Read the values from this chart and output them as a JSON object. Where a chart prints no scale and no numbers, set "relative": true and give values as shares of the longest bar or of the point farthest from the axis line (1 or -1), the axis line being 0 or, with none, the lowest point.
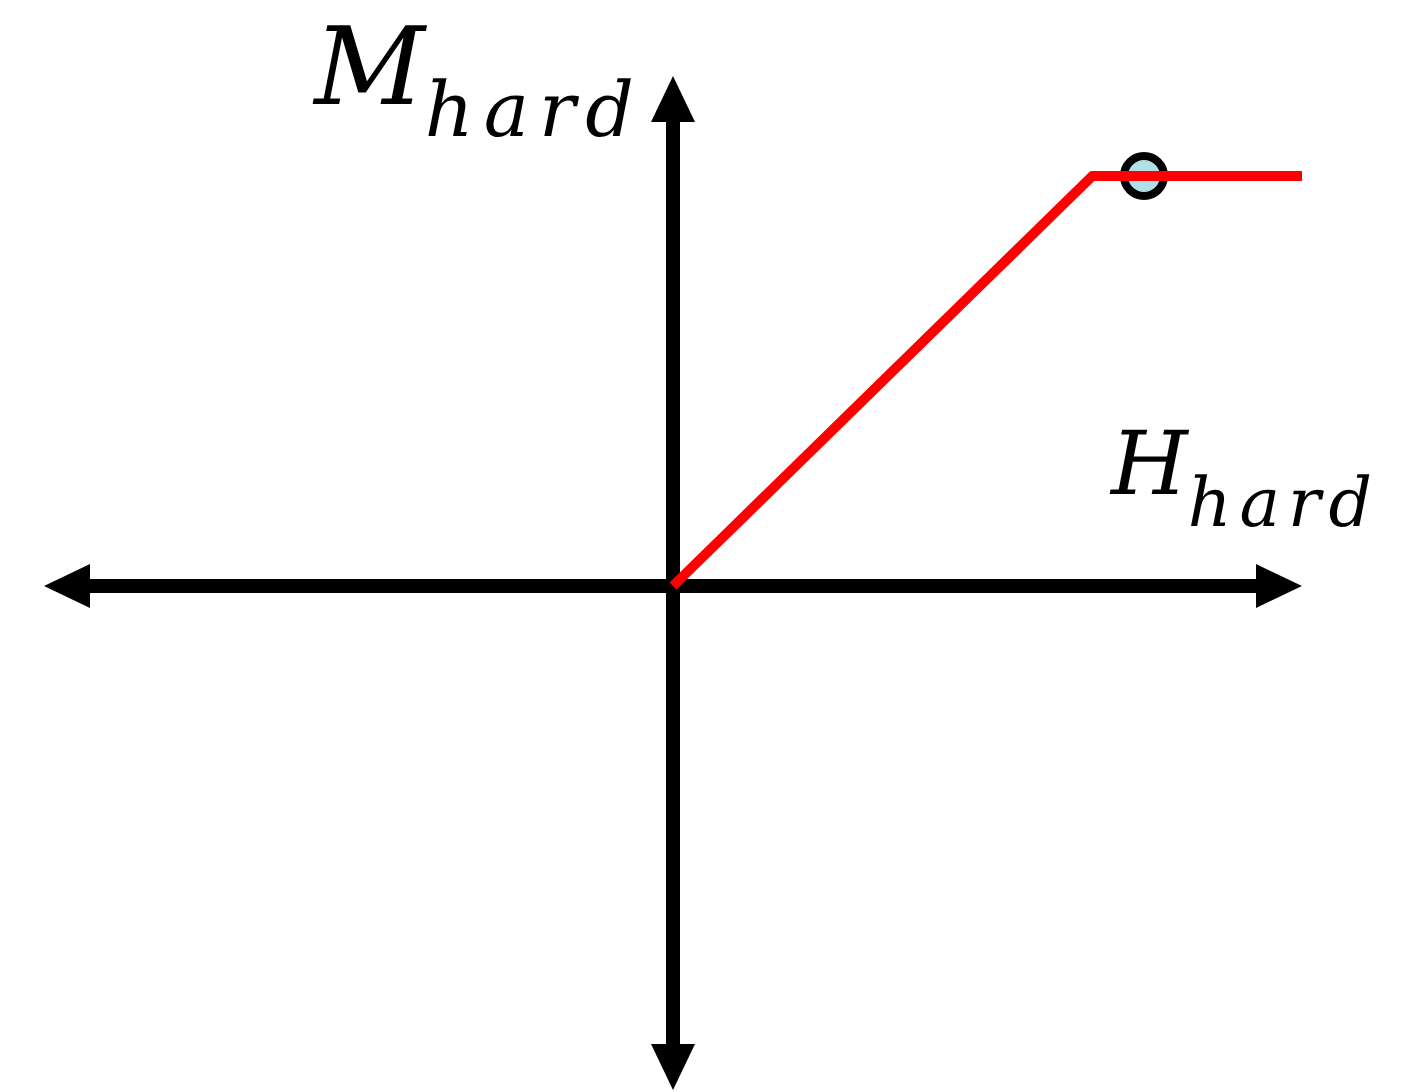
{
  "chart_data": {
    "type": "line",
    "relative": true,
    "xlabel": "H$_{hard}$",
    "ylabel": "M$_{hard}$",
    "categories": [
      null,
      null,
      null,
      null,
      null,
      null,
      null,
      null,
      null,
      null,
      null,
      null,
      null,
      null,
      null,
      null,
      null,
      null,
      null,
      null,
      null,
      null,
      null,
      null,
      null
    ],
    "series": [
      {
        "color": "#ff0000",
        "values": [
          null,
          null,
          null,
          null,
          null,
          null,
          null,
          null,
          null,
          null,
          null,
          null,
          0,
          0.125,
          0.25,
          0.375,
          0.5,
          0.625,
          0.75,
          0.875,
          1,
          1,
          1,
          1,
          1
        ]
      }
    ]
  }
}
